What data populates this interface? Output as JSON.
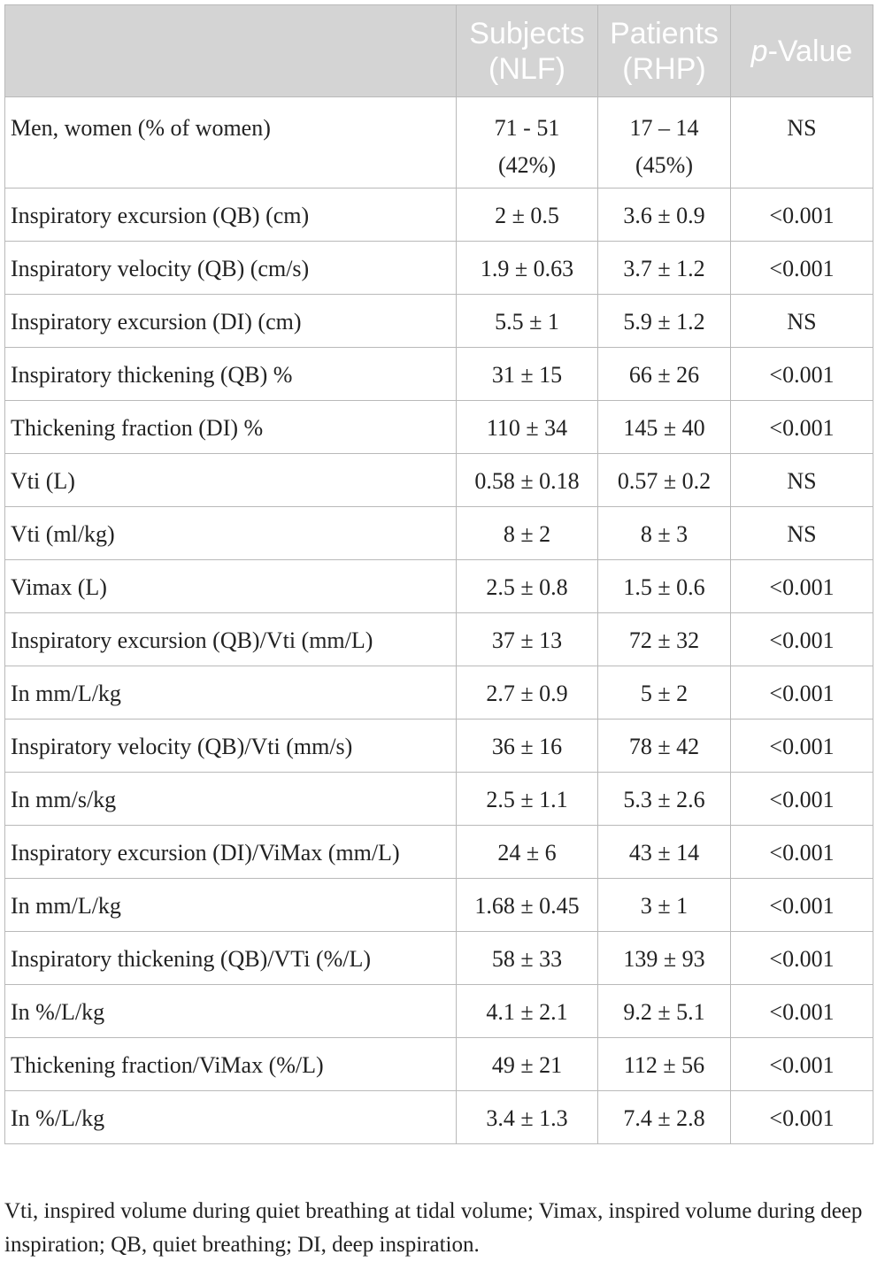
{
  "header": {
    "col1": "",
    "col2_line1": "Subjects",
    "col2_line2": "(NLF)",
    "col3_line1": "Patients",
    "col3_line2": "(RHP)",
    "col4_italic": "p",
    "col4_rest": "-Value"
  },
  "rows": [
    {
      "label": "Men, women (% of women)",
      "nlf": "71 - 51",
      "nlf2": "(42%)",
      "rhp": "17 – 14",
      "rhp2": "(45%)",
      "p": "NS"
    },
    {
      "label": "Inspiratory excursion (QB) (cm)",
      "nlf": "2 ± 0.5",
      "rhp": "3.6 ± 0.9",
      "p": "<0.001"
    },
    {
      "label": "Inspiratory velocity (QB) (cm/s)",
      "nlf": "1.9 ± 0.63",
      "rhp": "3.7 ± 1.2",
      "p": "<0.001"
    },
    {
      "label": "Inspiratory excursion (DI) (cm)",
      "nlf": "5.5 ± 1",
      "rhp": "5.9 ± 1.2",
      "p": "NS"
    },
    {
      "label": "Inspiratory thickening (QB) %",
      "nlf": "31 ± 15",
      "rhp": "66 ± 26",
      "p": "<0.001"
    },
    {
      "label": "Thickening fraction (DI) %",
      "nlf": "110 ± 34",
      "rhp": "145 ± 40",
      "p": "<0.001"
    },
    {
      "label": "Vti (L)",
      "nlf": "0.58 ± 0.18",
      "rhp": "0.57 ± 0.2",
      "p": "NS"
    },
    {
      "label": "Vti (ml/kg)",
      "nlf": "8 ± 2",
      "rhp": "8 ± 3",
      "p": "NS"
    },
    {
      "label": "Vimax (L)",
      "nlf": "2.5 ± 0.8",
      "rhp": "1.5 ± 0.6",
      "p": "<0.001"
    },
    {
      "label": "Inspiratory excursion (QB)/Vti (mm/L)",
      "nlf": "37 ± 13",
      "rhp": "72 ± 32",
      "p": "<0.001"
    },
    {
      "label": "In mm/L/kg",
      "nlf": "2.7 ± 0.9",
      "rhp": "5 ± 2",
      "p": "<0.001"
    },
    {
      "label": "Inspiratory velocity (QB)/Vti (mm/s)",
      "nlf": "36 ± 16",
      "rhp": "78 ± 42",
      "p": "<0.001"
    },
    {
      "label": "In mm/s/kg",
      "nlf": "2.5 ± 1.1",
      "rhp": "5.3 ± 2.6",
      "p": "<0.001"
    },
    {
      "label": "Inspiratory excursion (DI)/ViMax (mm/L)",
      "nlf": "24 ± 6",
      "rhp": "43 ± 14",
      "p": "<0.001"
    },
    {
      "label": "In mm/L/kg",
      "nlf": "1.68 ± 0.45",
      "rhp": "3 ± 1",
      "p": "<0.001"
    },
    {
      "label": "Inspiratory thickening (QB)/VTi (%/L)",
      "nlf": "58 ± 33",
      "rhp": "139 ± 93",
      "p": "<0.001"
    },
    {
      "label": "In %/L/kg",
      "nlf": "4.1 ± 2.1",
      "rhp": "9.2 ± 5.1",
      "p": "<0.001"
    },
    {
      "label": "Thickening fraction/ViMax (%/L)",
      "nlf": "49 ± 21",
      "rhp": "112 ± 56",
      "p": "<0.001"
    },
    {
      "label": "In %/L/kg",
      "nlf": "3.4 ± 1.3",
      "rhp": "7.4 ± 2.8",
      "p": "<0.001"
    }
  ],
  "footnote": "Vti, inspired volume during quiet breathing at tidal volume; Vimax, inspired volume during deep inspiration; QB, quiet breathing; DI, deep inspiration."
}
